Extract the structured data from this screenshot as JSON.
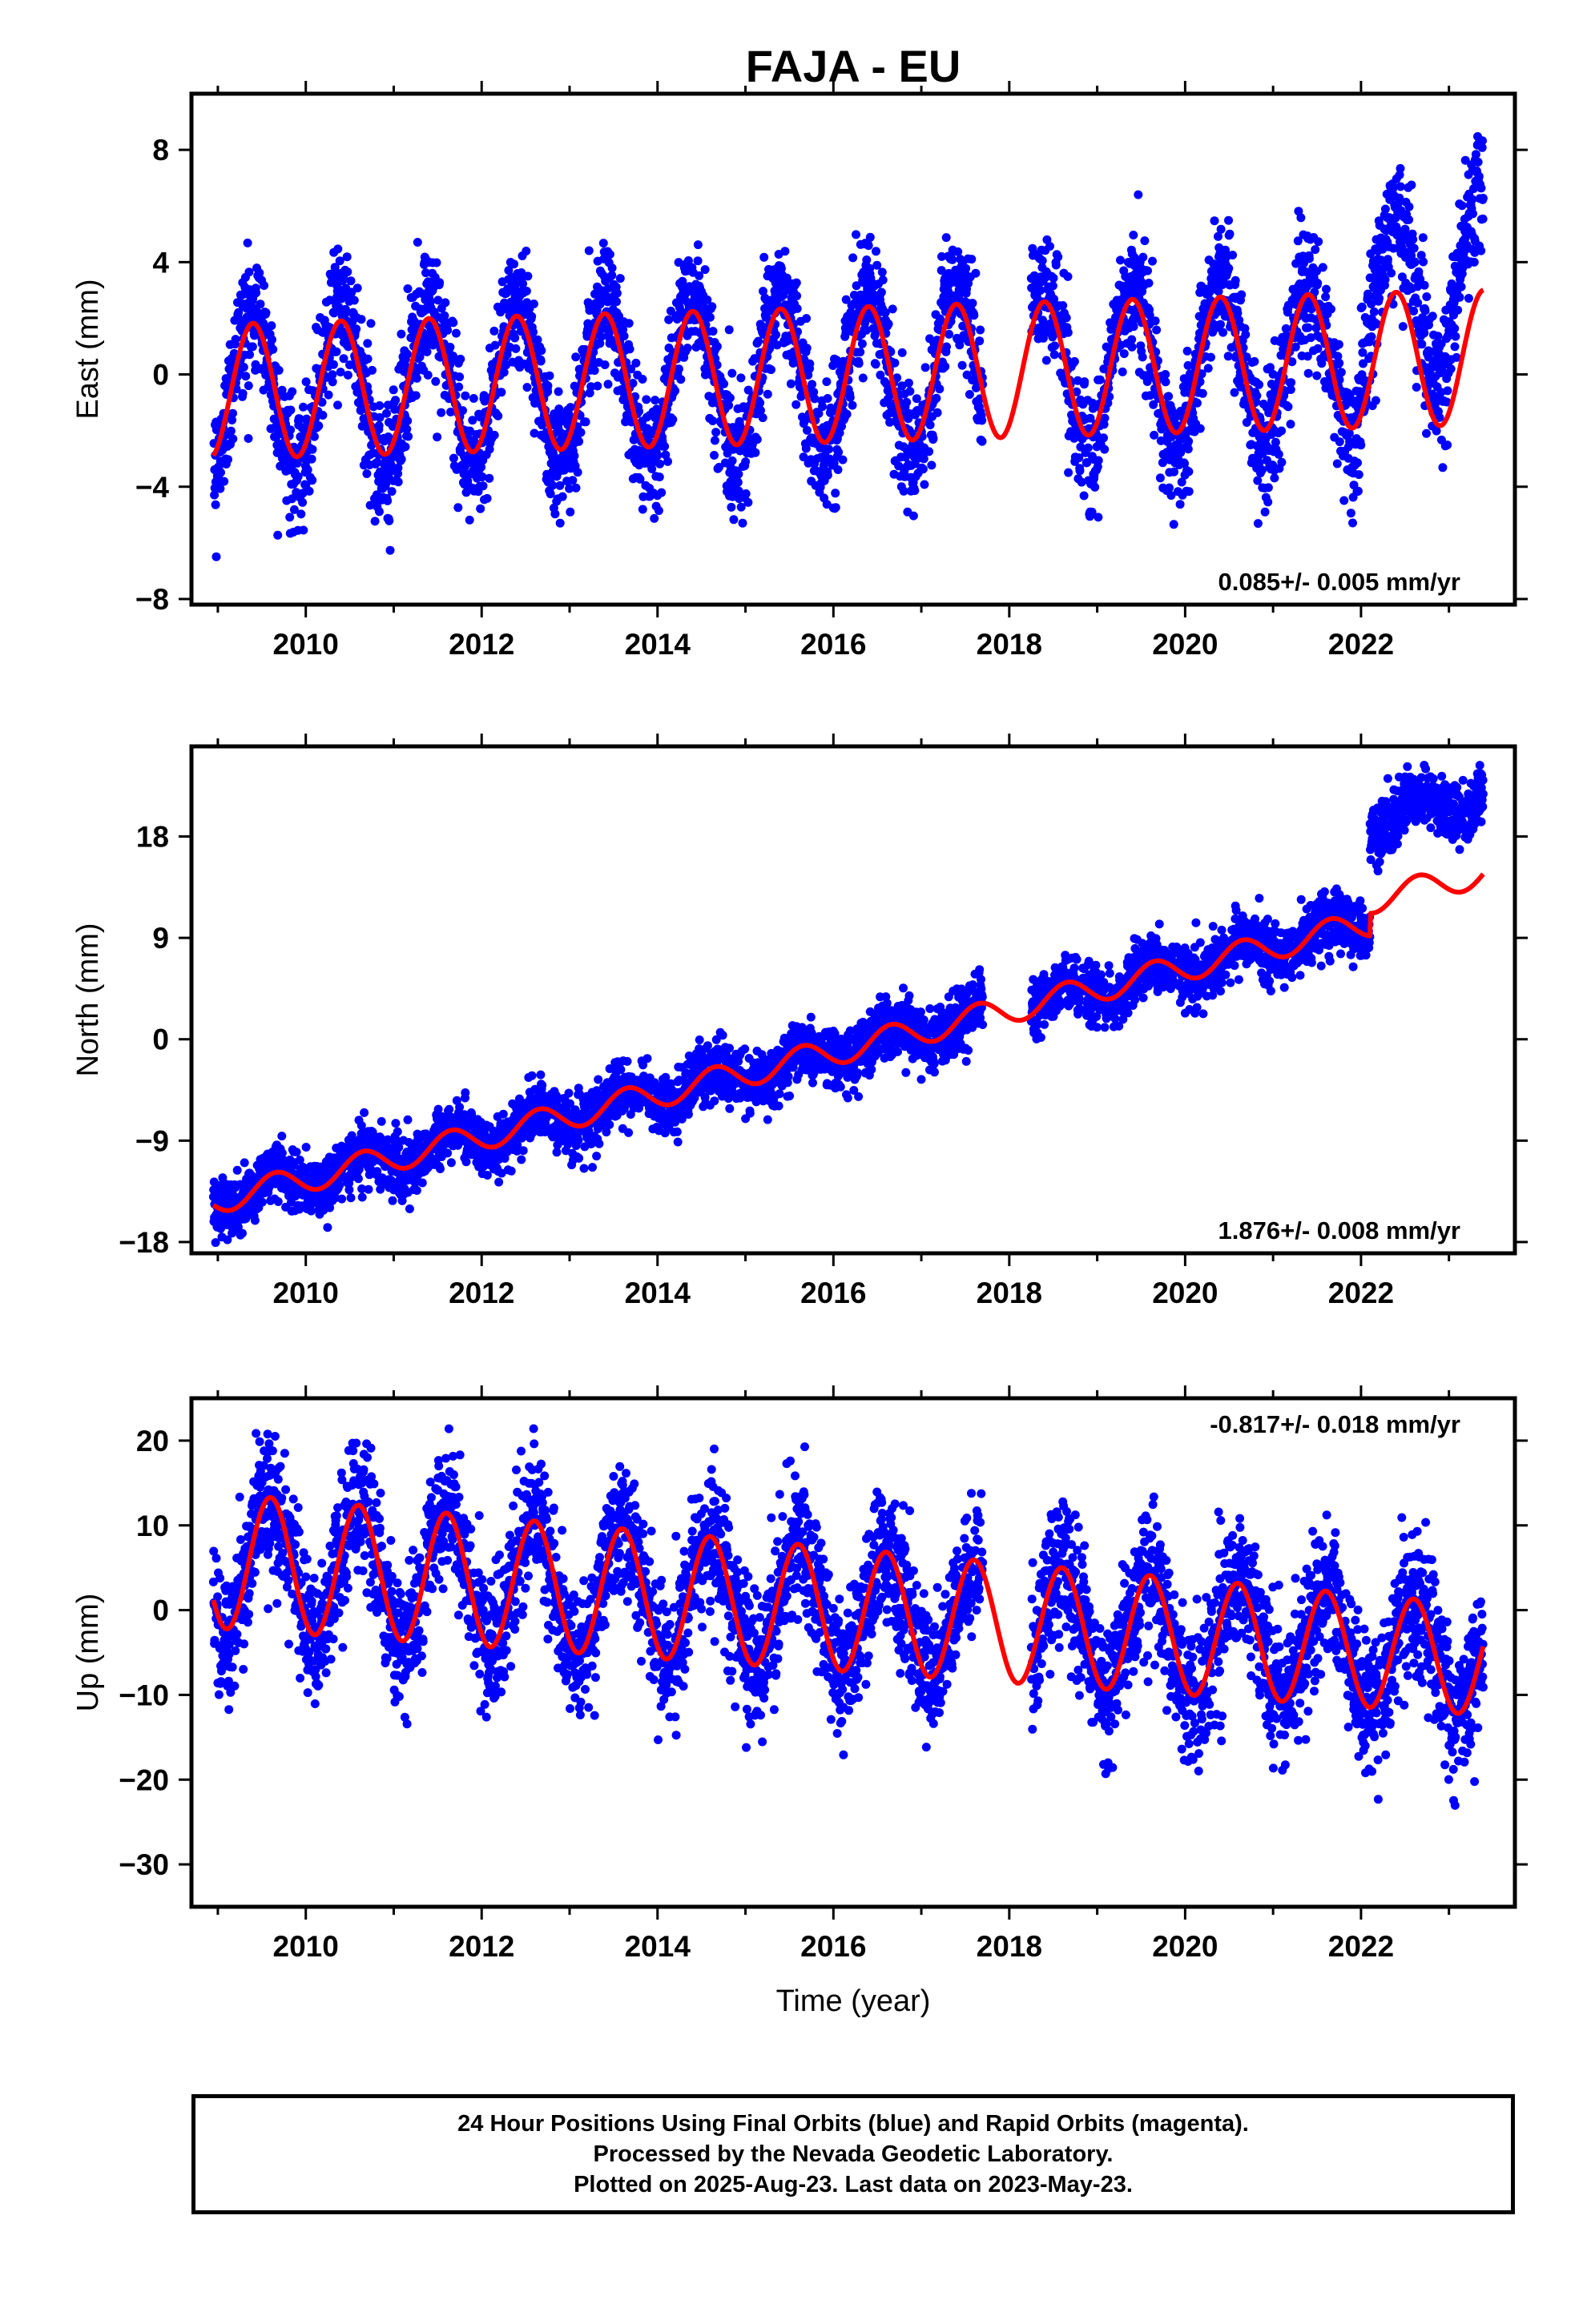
{
  "title": "FAJA - EU",
  "colors": {
    "points": "#0000ff",
    "model": "#ff0000",
    "axis": "#000000"
  },
  "footer": {
    "line1": "24 Hour Positions Using Final Orbits (blue) and Rapid Orbits (magenta).",
    "line2": "Processed by the Nevada Geodetic Laboratory.",
    "line3": "Plotted on 2025-Aug-23. Last data on 2023-May-23."
  },
  "chart_data": [
    {
      "type": "scatter",
      "ylabel": "East (mm)",
      "xlabel": "",
      "xlim": [
        2008.7,
        2023.75
      ],
      "ylim": [
        -8.2,
        10
      ],
      "xticks": [
        2010,
        2012,
        2014,
        2016,
        2018,
        2020,
        2022
      ],
      "yticks": [
        8,
        4,
        0,
        -4,
        -8
      ],
      "rate_label": "0.085+/- 0.005 mm/yr",
      "rate_label_position": "bottom-right",
      "data_range": [
        2008.95,
        2023.39
      ],
      "gap": [
        2017.7,
        2018.25
      ],
      "model": {
        "rate": 0.085,
        "amplitude": 2.4,
        "amplitude_end": 2.4,
        "phase": 0.15,
        "offset": 0.0,
        "steps": []
      },
      "scatter": {
        "noise": 1.1,
        "extra_amplitude": 0.5,
        "steps": [
          [
            2022.0,
            2.0
          ],
          [
            2023.0,
            1.5
          ]
        ]
      }
    },
    {
      "type": "scatter",
      "ylabel": "North (mm)",
      "xlabel": "",
      "xlim": [
        2008.7,
        2023.75
      ],
      "ylim": [
        -19,
        26
      ],
      "xticks": [
        2010,
        2012,
        2014,
        2016,
        2018,
        2020,
        2022
      ],
      "yticks": [
        18,
        9,
        0,
        -9,
        -18
      ],
      "rate_label": "1.876+/- 0.008 mm/yr",
      "rate_label_position": "bottom-right",
      "data_range": [
        2008.95,
        2023.39
      ],
      "gap": [
        2017.7,
        2018.25
      ],
      "model": {
        "rate": 1.876,
        "amplitude": 1.2,
        "amplitude_end": 1.2,
        "phase": 0.4,
        "offset": -0.8,
        "steps": [
          [
            2022.1,
            2.0
          ]
        ]
      },
      "scatter": {
        "noise": 1.3,
        "extra_amplitude": 0.0,
        "steps": [
          [
            2022.1,
            7.0
          ]
        ]
      }
    },
    {
      "type": "scatter",
      "ylabel": "Up (mm)",
      "xlabel": "Time (year)",
      "xlim": [
        2008.7,
        2023.75
      ],
      "ylim": [
        -35,
        25
      ],
      "xticks": [
        2010,
        2012,
        2014,
        2016,
        2018,
        2020,
        2022
      ],
      "yticks": [
        20,
        10,
        0,
        -10,
        -20,
        -30
      ],
      "rate_label": "-0.817+/- 0.018 mm/yr",
      "rate_label_position": "top-right",
      "data_range": [
        2008.95,
        2023.39
      ],
      "gap": [
        2017.7,
        2018.25
      ],
      "model": {
        "rate": -0.817,
        "amplitude": 8.0,
        "amplitude_end": 6.5,
        "phase": 0.35,
        "offset": 0.0,
        "steps": []
      },
      "scatter": {
        "noise": 4.0,
        "extra_amplitude": 0.0,
        "steps": []
      }
    }
  ]
}
